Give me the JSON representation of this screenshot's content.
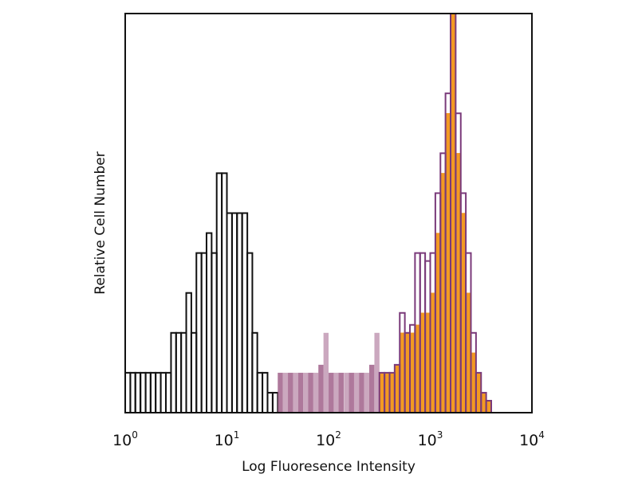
{
  "chart_data": {
    "type": "bar",
    "subtype": "histogram",
    "title": "",
    "xlabel": "Log Fluoresence Intensity",
    "ylabel": "Relative Cell Number",
    "x_scale": "log",
    "xlim": [
      1,
      10000
    ],
    "ylim": [
      0,
      100
    ],
    "grid": false,
    "x_ticks": [
      {
        "base": "10",
        "exp": "0"
      },
      {
        "base": "10",
        "exp": "1"
      },
      {
        "base": "10",
        "exp": "2"
      },
      {
        "base": "10",
        "exp": "3"
      },
      {
        "base": "10",
        "exp": "4"
      }
    ],
    "series": [
      {
        "style": "outline",
        "color": "#111111",
        "x": [
          1.06,
          1.19,
          1.33,
          1.5,
          1.68,
          1.88,
          2.11,
          2.37,
          2.66,
          2.99,
          3.35,
          3.76,
          4.22,
          4.73,
          5.31,
          5.96,
          6.68,
          7.5,
          8.41,
          9.44,
          10.6,
          11.9,
          13.3,
          15.0,
          16.8,
          18.8,
          21.1,
          23.7,
          26.6,
          29.9
        ],
        "values": [
          10,
          10,
          10,
          10,
          10,
          10,
          10,
          10,
          10,
          20,
          20,
          20,
          30,
          20,
          40,
          40,
          45,
          40,
          60,
          60,
          50,
          50,
          50,
          50,
          40,
          20,
          10,
          10,
          5,
          5
        ]
      },
      {
        "style": "background",
        "color": "#a0608a",
        "x": [
          33.5,
          37.6,
          42.2,
          47.3,
          53.1,
          59.6,
          66.8,
          75.0,
          84.1,
          94.4,
          106,
          119,
          133,
          150,
          168,
          188,
          211,
          237,
          266,
          299
        ],
        "values": [
          10,
          10,
          10,
          10,
          10,
          10,
          10,
          10,
          12,
          20,
          10,
          10,
          10,
          10,
          10,
          10,
          10,
          10,
          12,
          20
        ]
      },
      {
        "style": "filled",
        "color": "#f39a22",
        "x": [
          335,
          376,
          422,
          473,
          531,
          596,
          668,
          750,
          841,
          944,
          1059,
          1189,
          1334,
          1496,
          1679,
          1884,
          2113,
          2371,
          2661,
          2985,
          3350,
          3758
        ],
        "values": [
          10,
          10,
          10,
          12,
          20,
          20,
          20,
          22,
          25,
          25,
          30,
          45,
          60,
          75,
          100,
          65,
          50,
          30,
          15,
          10,
          5,
          3
        ]
      },
      {
        "style": "outline",
        "color": "#7a3a7a",
        "x": [
          335,
          376,
          422,
          473,
          531,
          596,
          668,
          750,
          841,
          944,
          1059,
          1189,
          1334,
          1496,
          1679,
          1884,
          2113,
          2371,
          2661,
          2985,
          3350,
          3758
        ],
        "values": [
          10,
          10,
          10,
          12,
          25,
          20,
          22,
          40,
          40,
          38,
          40,
          55,
          65,
          80,
          100,
          75,
          55,
          40,
          20,
          10,
          5,
          3
        ]
      }
    ]
  }
}
